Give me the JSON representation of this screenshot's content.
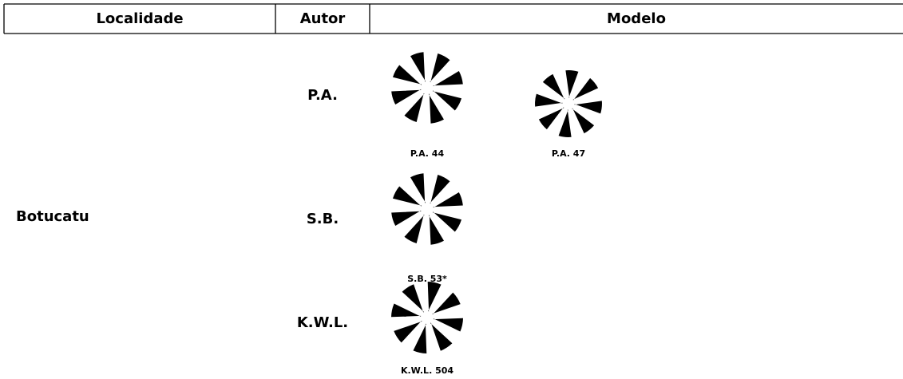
{
  "table": {
    "header": [
      "Localidade",
      "Autor",
      "Modelo"
    ],
    "rows": [
      {
        "locality": "Botucatu",
        "groups": [
          {
            "author": "P.A.",
            "models": [
              "P.A. 44",
              "P.A. 47"
            ]
          },
          {
            "author": "S.B.",
            "models": [
              "S.B. 53*"
            ]
          },
          {
            "author": "K.W.L.",
            "models": [
              "K.W.L. 504"
            ]
          }
        ]
      }
    ]
  }
}
